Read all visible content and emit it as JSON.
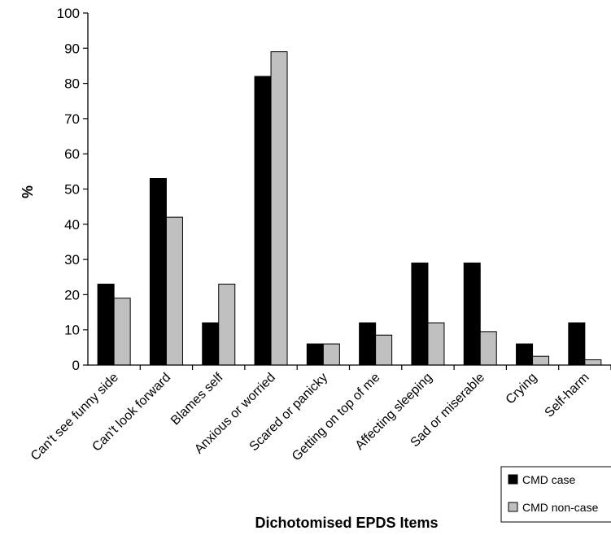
{
  "chart_data": {
    "type": "bar",
    "title": "",
    "xlabel": "Dichotomised EPDS Items",
    "ylabel": "%",
    "ylim": [
      0,
      100
    ],
    "yticks": [
      0,
      10,
      20,
      30,
      40,
      50,
      60,
      70,
      80,
      90,
      100
    ],
    "grid": false,
    "legend_position": "bottom-right",
    "categories": [
      "Can't see funny side",
      "Can't look forward",
      "Blames self",
      "Anxious or worried",
      "Scared or panicky",
      "Getting on top of me",
      "Affecting sleeping",
      "Sad or miserable",
      "Crying",
      "Self-harm"
    ],
    "series": [
      {
        "name": "CMD case",
        "color": "#000000",
        "values": [
          23,
          53,
          12,
          82,
          6,
          12,
          29,
          29,
          6,
          12
        ]
      },
      {
        "name": "CMD non-case",
        "color": "#c0c0c0",
        "values": [
          19,
          42,
          23,
          89,
          6,
          8.5,
          12,
          9.5,
          2.5,
          1.5
        ]
      }
    ]
  }
}
